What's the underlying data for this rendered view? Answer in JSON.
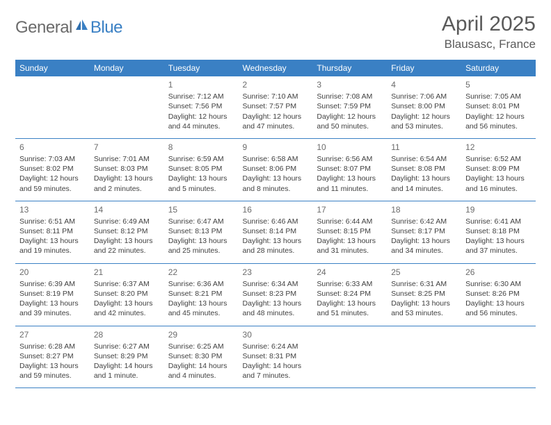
{
  "brand": {
    "part1": "General",
    "part2": "Blue"
  },
  "title": {
    "month": "April 2025",
    "location": "Blausasc, France"
  },
  "style": {
    "accent": "#3a80c4",
    "header_text": "#ffffff",
    "body_text": "#404040",
    "muted_text": "#6b6b6b",
    "background": "#ffffff",
    "title_fontsize": 30,
    "location_fontsize": 17,
    "weekday_fontsize": 12,
    "cell_fontsize": 10.5,
    "logo_fontsize": 24
  },
  "weekdays": [
    "Sunday",
    "Monday",
    "Tuesday",
    "Wednesday",
    "Thursday",
    "Friday",
    "Saturday"
  ],
  "weeks": [
    [
      null,
      null,
      {
        "n": "1",
        "sr": "Sunrise: 7:12 AM",
        "ss": "Sunset: 7:56 PM",
        "dl1": "Daylight: 12 hours",
        "dl2": "and 44 minutes."
      },
      {
        "n": "2",
        "sr": "Sunrise: 7:10 AM",
        "ss": "Sunset: 7:57 PM",
        "dl1": "Daylight: 12 hours",
        "dl2": "and 47 minutes."
      },
      {
        "n": "3",
        "sr": "Sunrise: 7:08 AM",
        "ss": "Sunset: 7:59 PM",
        "dl1": "Daylight: 12 hours",
        "dl2": "and 50 minutes."
      },
      {
        "n": "4",
        "sr": "Sunrise: 7:06 AM",
        "ss": "Sunset: 8:00 PM",
        "dl1": "Daylight: 12 hours",
        "dl2": "and 53 minutes."
      },
      {
        "n": "5",
        "sr": "Sunrise: 7:05 AM",
        "ss": "Sunset: 8:01 PM",
        "dl1": "Daylight: 12 hours",
        "dl2": "and 56 minutes."
      }
    ],
    [
      {
        "n": "6",
        "sr": "Sunrise: 7:03 AM",
        "ss": "Sunset: 8:02 PM",
        "dl1": "Daylight: 12 hours",
        "dl2": "and 59 minutes."
      },
      {
        "n": "7",
        "sr": "Sunrise: 7:01 AM",
        "ss": "Sunset: 8:03 PM",
        "dl1": "Daylight: 13 hours",
        "dl2": "and 2 minutes."
      },
      {
        "n": "8",
        "sr": "Sunrise: 6:59 AM",
        "ss": "Sunset: 8:05 PM",
        "dl1": "Daylight: 13 hours",
        "dl2": "and 5 minutes."
      },
      {
        "n": "9",
        "sr": "Sunrise: 6:58 AM",
        "ss": "Sunset: 8:06 PM",
        "dl1": "Daylight: 13 hours",
        "dl2": "and 8 minutes."
      },
      {
        "n": "10",
        "sr": "Sunrise: 6:56 AM",
        "ss": "Sunset: 8:07 PM",
        "dl1": "Daylight: 13 hours",
        "dl2": "and 11 minutes."
      },
      {
        "n": "11",
        "sr": "Sunrise: 6:54 AM",
        "ss": "Sunset: 8:08 PM",
        "dl1": "Daylight: 13 hours",
        "dl2": "and 14 minutes."
      },
      {
        "n": "12",
        "sr": "Sunrise: 6:52 AM",
        "ss": "Sunset: 8:09 PM",
        "dl1": "Daylight: 13 hours",
        "dl2": "and 16 minutes."
      }
    ],
    [
      {
        "n": "13",
        "sr": "Sunrise: 6:51 AM",
        "ss": "Sunset: 8:11 PM",
        "dl1": "Daylight: 13 hours",
        "dl2": "and 19 minutes."
      },
      {
        "n": "14",
        "sr": "Sunrise: 6:49 AM",
        "ss": "Sunset: 8:12 PM",
        "dl1": "Daylight: 13 hours",
        "dl2": "and 22 minutes."
      },
      {
        "n": "15",
        "sr": "Sunrise: 6:47 AM",
        "ss": "Sunset: 8:13 PM",
        "dl1": "Daylight: 13 hours",
        "dl2": "and 25 minutes."
      },
      {
        "n": "16",
        "sr": "Sunrise: 6:46 AM",
        "ss": "Sunset: 8:14 PM",
        "dl1": "Daylight: 13 hours",
        "dl2": "and 28 minutes."
      },
      {
        "n": "17",
        "sr": "Sunrise: 6:44 AM",
        "ss": "Sunset: 8:15 PM",
        "dl1": "Daylight: 13 hours",
        "dl2": "and 31 minutes."
      },
      {
        "n": "18",
        "sr": "Sunrise: 6:42 AM",
        "ss": "Sunset: 8:17 PM",
        "dl1": "Daylight: 13 hours",
        "dl2": "and 34 minutes."
      },
      {
        "n": "19",
        "sr": "Sunrise: 6:41 AM",
        "ss": "Sunset: 8:18 PM",
        "dl1": "Daylight: 13 hours",
        "dl2": "and 37 minutes."
      }
    ],
    [
      {
        "n": "20",
        "sr": "Sunrise: 6:39 AM",
        "ss": "Sunset: 8:19 PM",
        "dl1": "Daylight: 13 hours",
        "dl2": "and 39 minutes."
      },
      {
        "n": "21",
        "sr": "Sunrise: 6:37 AM",
        "ss": "Sunset: 8:20 PM",
        "dl1": "Daylight: 13 hours",
        "dl2": "and 42 minutes."
      },
      {
        "n": "22",
        "sr": "Sunrise: 6:36 AM",
        "ss": "Sunset: 8:21 PM",
        "dl1": "Daylight: 13 hours",
        "dl2": "and 45 minutes."
      },
      {
        "n": "23",
        "sr": "Sunrise: 6:34 AM",
        "ss": "Sunset: 8:23 PM",
        "dl1": "Daylight: 13 hours",
        "dl2": "and 48 minutes."
      },
      {
        "n": "24",
        "sr": "Sunrise: 6:33 AM",
        "ss": "Sunset: 8:24 PM",
        "dl1": "Daylight: 13 hours",
        "dl2": "and 51 minutes."
      },
      {
        "n": "25",
        "sr": "Sunrise: 6:31 AM",
        "ss": "Sunset: 8:25 PM",
        "dl1": "Daylight: 13 hours",
        "dl2": "and 53 minutes."
      },
      {
        "n": "26",
        "sr": "Sunrise: 6:30 AM",
        "ss": "Sunset: 8:26 PM",
        "dl1": "Daylight: 13 hours",
        "dl2": "and 56 minutes."
      }
    ],
    [
      {
        "n": "27",
        "sr": "Sunrise: 6:28 AM",
        "ss": "Sunset: 8:27 PM",
        "dl1": "Daylight: 13 hours",
        "dl2": "and 59 minutes."
      },
      {
        "n": "28",
        "sr": "Sunrise: 6:27 AM",
        "ss": "Sunset: 8:29 PM",
        "dl1": "Daylight: 14 hours",
        "dl2": "and 1 minute."
      },
      {
        "n": "29",
        "sr": "Sunrise: 6:25 AM",
        "ss": "Sunset: 8:30 PM",
        "dl1": "Daylight: 14 hours",
        "dl2": "and 4 minutes."
      },
      {
        "n": "30",
        "sr": "Sunrise: 6:24 AM",
        "ss": "Sunset: 8:31 PM",
        "dl1": "Daylight: 14 hours",
        "dl2": "and 7 minutes."
      },
      null,
      null,
      null
    ]
  ]
}
